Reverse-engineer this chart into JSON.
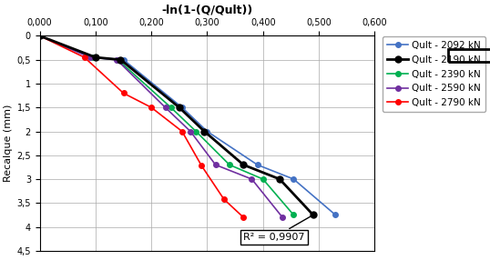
{
  "title": "-ln(1-(Q/Qult))",
  "ylabel": "Recalque (mm)",
  "xlim": [
    0.0,
    0.6
  ],
  "ylim": [
    4.5,
    0.0
  ],
  "xticks": [
    0.0,
    0.1,
    0.2,
    0.3,
    0.4,
    0.5,
    0.6
  ],
  "yticks": [
    0,
    0.5,
    1,
    1.5,
    2,
    2.5,
    3,
    3.5,
    4,
    4.5
  ],
  "xtick_labels": [
    "0,000",
    "0,100",
    "0,200",
    "0,300",
    "0,400",
    "0,500",
    "0,600"
  ],
  "ytick_labels": [
    "0",
    "0,5",
    "1",
    "1,5",
    "2",
    "2,5",
    "3",
    "3,5",
    "4",
    "4,5"
  ],
  "r2_text": "R² = 0,9907",
  "series": [
    {
      "label": "Qult - 2092 kN",
      "color": "#4472C4",
      "linewidth": 1.2,
      "marker": "o",
      "markersize": 4,
      "x": [
        0.0,
        0.095,
        0.15,
        0.255,
        0.3,
        0.39,
        0.455,
        0.53
      ],
      "y": [
        0.0,
        0.45,
        0.5,
        1.5,
        2.0,
        2.7,
        3.0,
        3.75
      ]
    },
    {
      "label": "Qult - 2190 kN",
      "color": "#000000",
      "linewidth": 2.0,
      "marker": "o",
      "markersize": 5,
      "x": [
        0.0,
        0.1,
        0.145,
        0.25,
        0.295,
        0.365,
        0.43,
        0.49
      ],
      "y": [
        0.0,
        0.45,
        0.5,
        1.5,
        2.0,
        2.7,
        3.0,
        3.75
      ]
    },
    {
      "label": "Qult - 2390 kN",
      "color": "#00B050",
      "linewidth": 1.2,
      "marker": "o",
      "markersize": 4,
      "x": [
        0.0,
        0.093,
        0.14,
        0.235,
        0.28,
        0.34,
        0.4,
        0.455
      ],
      "y": [
        0.0,
        0.45,
        0.5,
        1.5,
        2.0,
        2.7,
        3.0,
        3.75
      ]
    },
    {
      "label": "Qult - 2590 kN",
      "color": "#7030A0",
      "linewidth": 1.2,
      "marker": "o",
      "markersize": 4,
      "x": [
        0.0,
        0.09,
        0.138,
        0.225,
        0.27,
        0.315,
        0.38,
        0.435
      ],
      "y": [
        0.0,
        0.45,
        0.5,
        1.5,
        2.0,
        2.7,
        3.0,
        3.8
      ]
    },
    {
      "label": "Qult - 2790 kN",
      "color": "#FF0000",
      "linewidth": 1.2,
      "marker": "o",
      "markersize": 4,
      "x": [
        0.0,
        0.08,
        0.15,
        0.2,
        0.255,
        0.29,
        0.33,
        0.365
      ],
      "y": [
        0.0,
        0.45,
        1.2,
        1.5,
        2.0,
        2.72,
        3.42,
        3.8
      ]
    }
  ]
}
